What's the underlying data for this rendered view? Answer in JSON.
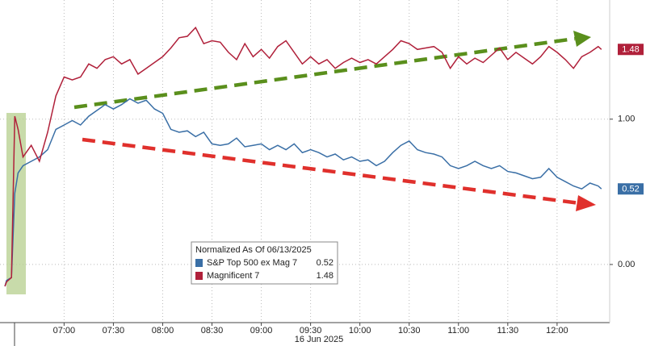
{
  "chart_data": {
    "type": "line",
    "xlabel": "16 Jun 2025",
    "legend_title": "Normalized As Of 06/13/2025",
    "x": [
      "06:24",
      "06:25",
      "06:28",
      "06:30",
      "06:32",
      "06:35",
      "06:40",
      "06:45",
      "06:50",
      "06:55",
      "07:00",
      "07:05",
      "07:10",
      "07:15",
      "07:20",
      "07:25",
      "07:30",
      "07:35",
      "07:40",
      "07:45",
      "07:50",
      "07:55",
      "08:00",
      "08:05",
      "08:10",
      "08:15",
      "08:20",
      "08:25",
      "08:30",
      "08:35",
      "08:40",
      "08:45",
      "08:50",
      "08:55",
      "09:00",
      "09:05",
      "09:10",
      "09:15",
      "09:20",
      "09:25",
      "09:30",
      "09:35",
      "09:40",
      "09:45",
      "09:50",
      "09:55",
      "10:00",
      "10:05",
      "10:10",
      "10:15",
      "10:20",
      "10:25",
      "10:30",
      "10:35",
      "10:40",
      "10:45",
      "10:50",
      "10:55",
      "11:00",
      "11:05",
      "11:10",
      "11:15",
      "11:20",
      "11:25",
      "11:30",
      "11:35",
      "11:40",
      "11:45",
      "11:50",
      "11:55",
      "12:00",
      "12:05",
      "12:10",
      "12:15",
      "12:20",
      "12:25",
      "12:27"
    ],
    "series": [
      {
        "name": "S&P Top 500 ex Mag 7",
        "color": "#3a6fa6",
        "values": [
          -0.15,
          -0.11,
          -0.09,
          0.49,
          0.63,
          0.68,
          0.71,
          0.74,
          0.79,
          0.93,
          0.96,
          0.99,
          0.96,
          1.02,
          1.06,
          1.1,
          1.07,
          1.1,
          1.14,
          1.11,
          1.13,
          1.07,
          1.04,
          0.93,
          0.91,
          0.92,
          0.88,
          0.91,
          0.83,
          0.82,
          0.83,
          0.87,
          0.81,
          0.82,
          0.83,
          0.79,
          0.82,
          0.79,
          0.83,
          0.77,
          0.79,
          0.77,
          0.74,
          0.76,
          0.72,
          0.74,
          0.71,
          0.72,
          0.68,
          0.71,
          0.77,
          0.82,
          0.85,
          0.79,
          0.77,
          0.76,
          0.74,
          0.68,
          0.66,
          0.68,
          0.71,
          0.68,
          0.66,
          0.68,
          0.64,
          0.63,
          0.61,
          0.59,
          0.6,
          0.66,
          0.6,
          0.57,
          0.54,
          0.52,
          0.56,
          0.54,
          0.52
        ]
      },
      {
        "name": "Magnificent 7",
        "color": "#b0203a",
        "values": [
          -0.15,
          -0.12,
          -0.09,
          1.02,
          0.93,
          0.74,
          0.82,
          0.71,
          0.91,
          1.16,
          1.29,
          1.27,
          1.29,
          1.38,
          1.35,
          1.41,
          1.43,
          1.38,
          1.41,
          1.31,
          1.35,
          1.39,
          1.43,
          1.49,
          1.56,
          1.57,
          1.63,
          1.52,
          1.54,
          1.53,
          1.46,
          1.41,
          1.52,
          1.43,
          1.48,
          1.42,
          1.5,
          1.54,
          1.46,
          1.38,
          1.43,
          1.38,
          1.41,
          1.35,
          1.39,
          1.42,
          1.39,
          1.41,
          1.38,
          1.43,
          1.48,
          1.54,
          1.52,
          1.48,
          1.49,
          1.5,
          1.46,
          1.35,
          1.43,
          1.38,
          1.42,
          1.39,
          1.44,
          1.49,
          1.41,
          1.46,
          1.42,
          1.38,
          1.43,
          1.5,
          1.46,
          1.41,
          1.35,
          1.43,
          1.46,
          1.5,
          1.48
        ]
      }
    ],
    "xlim": [
      "06:21",
      "12:32"
    ],
    "xticks": [
      "07:00",
      "07:30",
      "08:00",
      "08:30",
      "09:00",
      "09:30",
      "10:00",
      "10:30",
      "11:00",
      "11:30",
      "12:00"
    ],
    "ylim": [
      -0.4,
      1.82
    ],
    "yticks": [
      {
        "value": 0,
        "label": "0.00"
      },
      {
        "value": 1,
        "label": "1.00"
      }
    ],
    "grid": true
  }
}
